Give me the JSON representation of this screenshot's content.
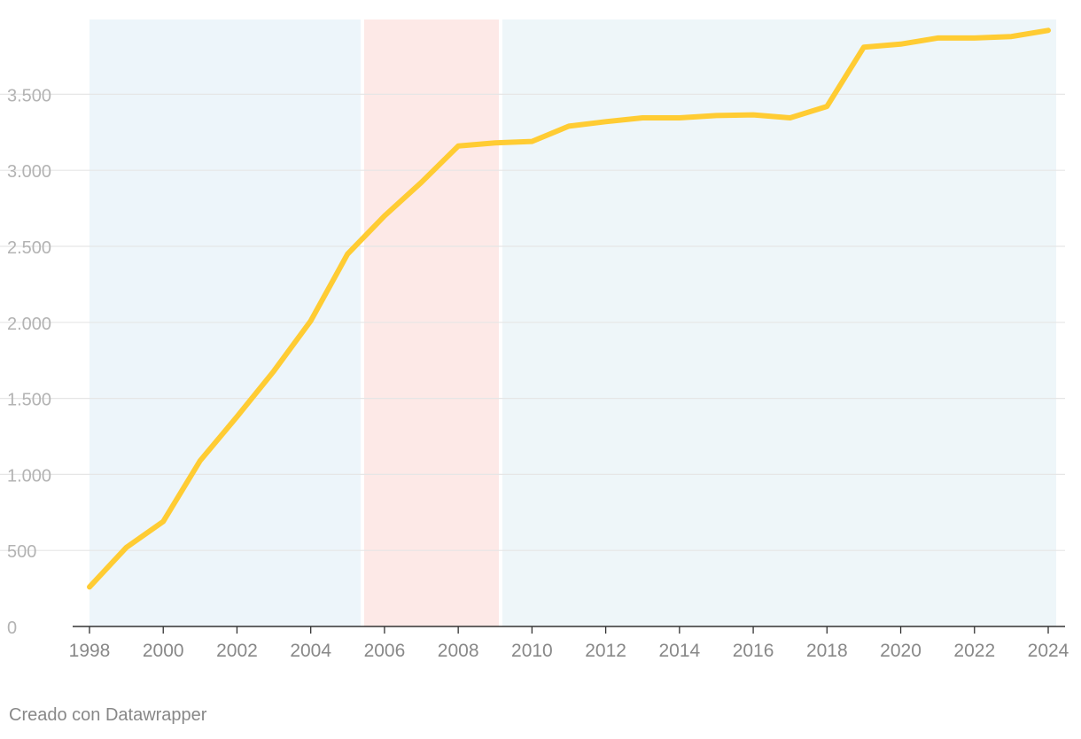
{
  "chart_data": {
    "type": "line",
    "title": "",
    "xlabel": "",
    "ylabel": "",
    "xlim": [
      1998,
      2024
    ],
    "ylim": [
      0,
      4000
    ],
    "grid": true,
    "x_ticks": [
      1998,
      2000,
      2002,
      2004,
      2006,
      2008,
      2010,
      2012,
      2014,
      2016,
      2018,
      2020,
      2022,
      2024
    ],
    "x_tick_labels": [
      "1998",
      "2000",
      "2002",
      "2004",
      "2006",
      "2008",
      "2010",
      "2012",
      "2014",
      "2016",
      "2018",
      "2020",
      "2022",
      "2024"
    ],
    "y_ticks": [
      0,
      500,
      1000,
      1500,
      2000,
      2500,
      3000,
      3500
    ],
    "y_tick_labels": [
      "0",
      "500",
      "1.000",
      "1.500",
      "2.000",
      "2.500",
      "3.000",
      "3.500"
    ],
    "shaded_ranges": [
      {
        "x0": 1998,
        "x1": 2005.4,
        "color": "#edf5fa"
      },
      {
        "x0": 2005.4,
        "x1": 2009.15,
        "color": "#fde9e7"
      },
      {
        "x0": 2009.15,
        "x1": 2024.2,
        "color": "#eef6f9"
      }
    ],
    "series": [
      {
        "color": "#ffcc33",
        "x": [
          1998,
          1999,
          2000,
          2001,
          2002,
          2003,
          2004,
          2005,
          2006,
          2007,
          2008,
          2009,
          2010,
          2011,
          2012,
          2013,
          2014,
          2015,
          2016,
          2017,
          2018,
          2019,
          2020,
          2021,
          2022,
          2023,
          2024
        ],
        "values": [
          260,
          520,
          690,
          1090,
          1380,
          1680,
          2010,
          2450,
          2700,
          2920,
          3160,
          3180,
          3190,
          3290,
          3320,
          3345,
          3345,
          3360,
          3365,
          3345,
          3420,
          3810,
          3830,
          3870,
          3870,
          3880,
          3920
        ]
      }
    ]
  },
  "credit": "Creado con Datawrapper"
}
